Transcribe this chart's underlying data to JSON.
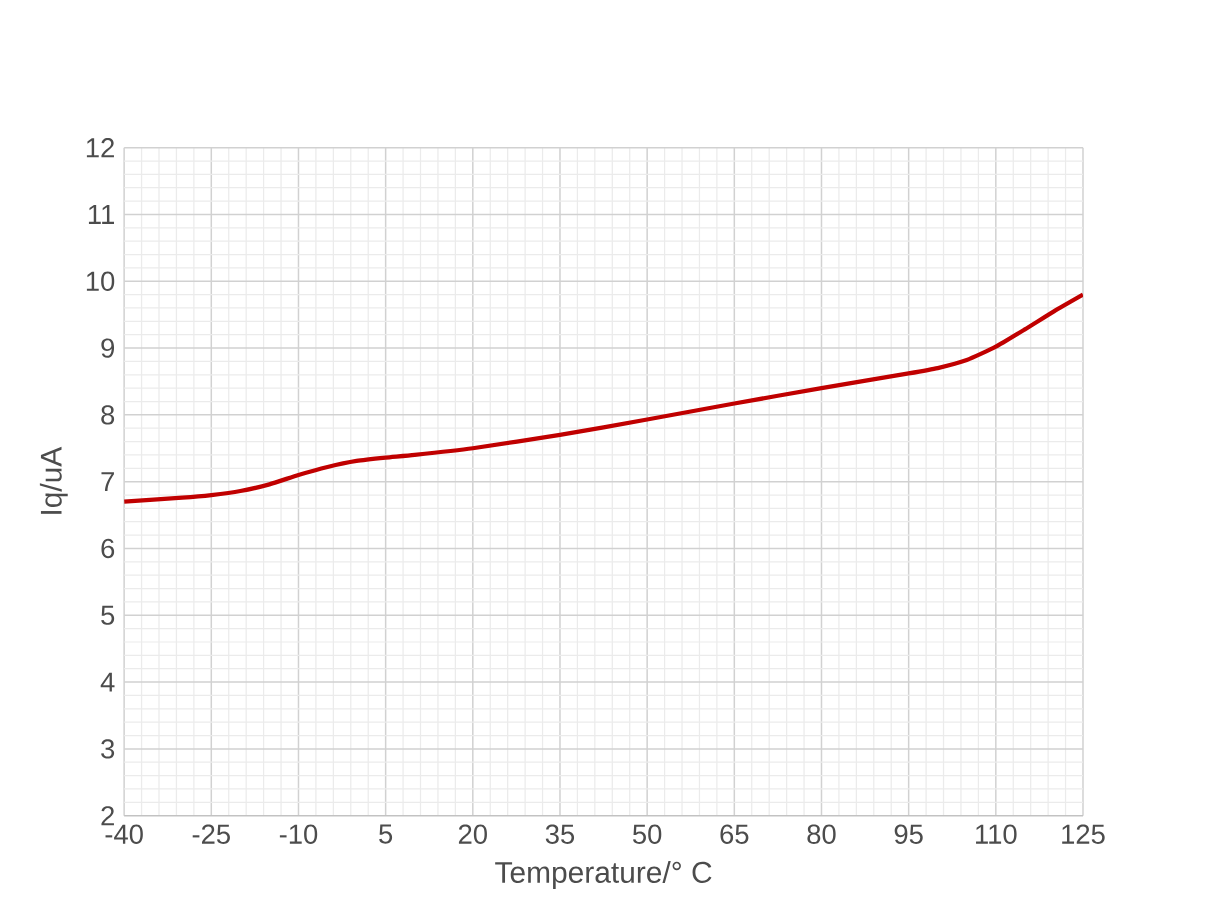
{
  "chart_data": {
    "type": "line",
    "xlabel": "Temperature/° C",
    "ylabel": "Iq/uA",
    "xlim": [
      -40,
      125
    ],
    "xticks": [
      -40,
      -25,
      -10,
      5,
      20,
      35,
      50,
      65,
      80,
      95,
      110,
      125
    ],
    "ylim": [
      2,
      12
    ],
    "yticks": [
      2,
      3,
      4,
      5,
      6,
      7,
      8,
      9,
      10,
      11,
      12
    ],
    "grid": true,
    "series": [
      {
        "color": "#c00000",
        "x": [
          -40,
          -30,
          -25,
          -20,
          -15,
          -10,
          -5,
          0,
          5,
          10,
          20,
          35,
          50,
          65,
          80,
          95,
          100,
          105,
          110,
          115,
          120,
          125
        ],
        "values": [
          6.7,
          6.76,
          6.8,
          6.86,
          6.96,
          7.1,
          7.22,
          7.31,
          7.36,
          7.4,
          7.5,
          7.7,
          7.93,
          8.17,
          8.4,
          8.62,
          8.7,
          8.82,
          9.02,
          9.28,
          9.55,
          9.8
        ]
      }
    ]
  }
}
